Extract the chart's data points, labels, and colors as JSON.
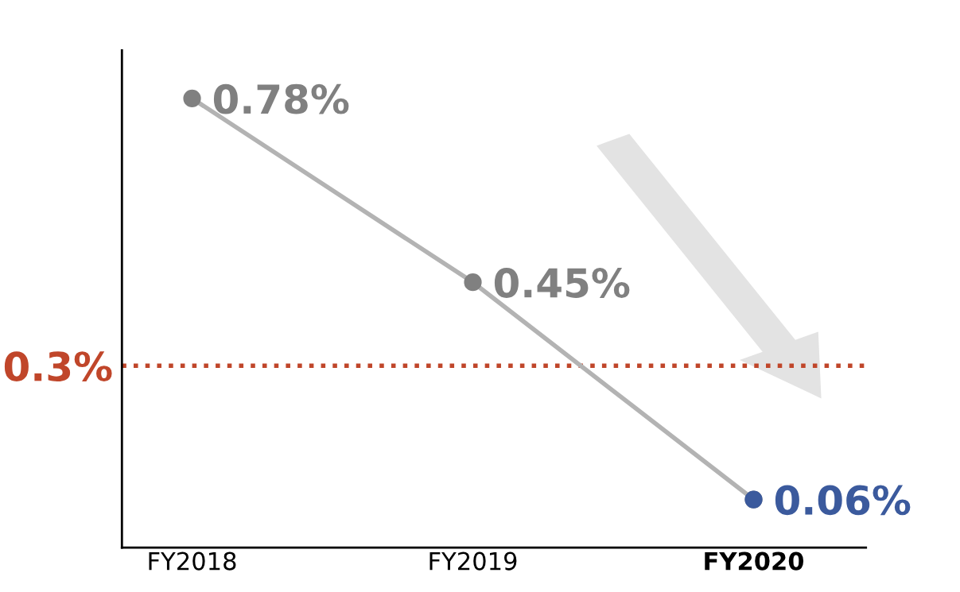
{
  "chart_data": {
    "type": "line",
    "categories": [
      "FY2018",
      "FY2019",
      "FY2020"
    ],
    "series": [
      {
        "color": "#b3b3b3",
        "colors": [
          "#808080",
          "#808080",
          "#3b5a9d"
        ],
        "values": [
          0.78,
          0.45,
          0.06
        ],
        "value_labels": [
          "0.78%",
          "0.45%",
          "0.06%"
        ]
      }
    ],
    "ref_lines": [
      {
        "axis": "y",
        "value": 0.3,
        "label": "0.3%",
        "color": "#c0462a",
        "line_style": "dotted"
      }
    ],
    "marker": "circle",
    "line_style": "solid",
    "grid": false,
    "legend": false,
    "tick_labels": "x"
  }
}
